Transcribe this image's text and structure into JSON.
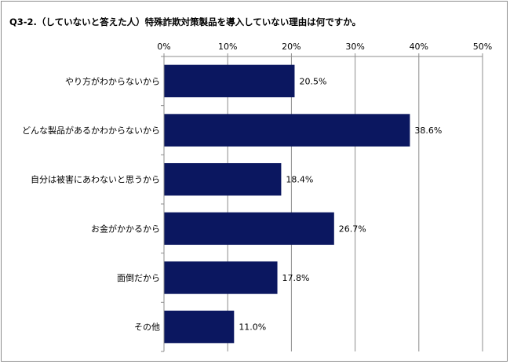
{
  "chart_data": {
    "type": "bar",
    "orientation": "horizontal",
    "title": "Q3-2.（していないと答えた人）特殊詐欺対策製品を導入していない理由は何ですか。",
    "categories": [
      "やり方がわからないから",
      "どんな製品があるかわからないから",
      "自分は被害にあわないと思うから",
      "お金がかかるから",
      "面倒だから",
      "その他"
    ],
    "values": [
      20.5,
      38.6,
      18.4,
      26.7,
      17.8,
      11.0
    ],
    "value_labels": [
      "20.5%",
      "38.6%",
      "18.4%",
      "26.7%",
      "17.8%",
      "11.0%"
    ],
    "xlim": [
      0,
      50
    ],
    "xticks": [
      0,
      10,
      20,
      30,
      40,
      50
    ],
    "xtick_labels": [
      "0%",
      "10%",
      "20%",
      "30%",
      "40%",
      "50%"
    ],
    "xaxis_position": "top",
    "grid": true,
    "bar_color": "#0b1760"
  }
}
